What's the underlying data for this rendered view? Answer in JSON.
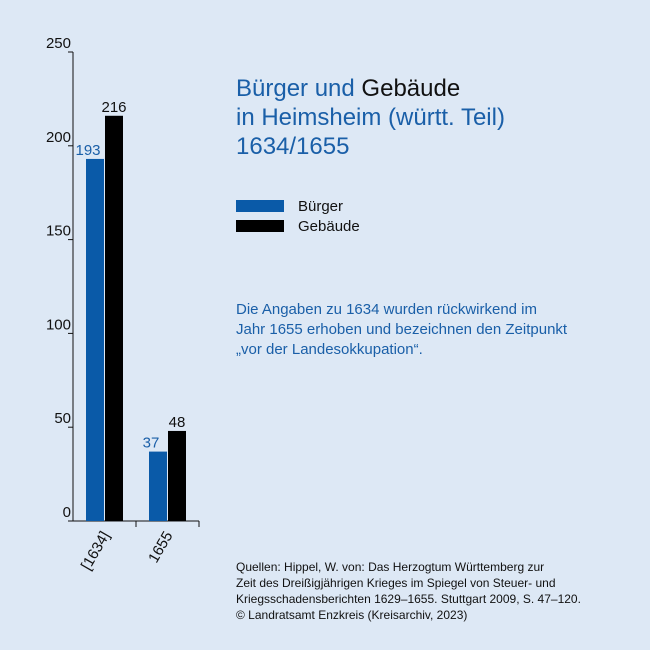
{
  "chart_data": {
    "type": "bar",
    "title_part1": "Bürger und",
    "title_part2": "Gebäude",
    "title_line2": "in Heimsheim (württ. Teil)",
    "title_line3": "1634/1655",
    "categories": [
      "[1634]",
      "1655"
    ],
    "series": [
      {
        "name": "Bürger",
        "values": [
          193,
          37
        ],
        "color": "#0a5aa8",
        "label_color": "#1a5fa8"
      },
      {
        "name": "Gebäude",
        "values": [
          216,
          48
        ],
        "color": "#000000",
        "label_color": "#111111"
      }
    ],
    "ylim": [
      0,
      250
    ],
    "yticks": [
      0,
      50,
      100,
      150,
      200,
      250
    ],
    "grid": false,
    "legend": "right"
  },
  "note": {
    "line1": "Die Angaben zu 1634 wurden rückwirkend im",
    "line2": "Jahr 1655 erhoben und bezeichnen den Zeitpunkt",
    "line3": "„vor der Landesokkupation“."
  },
  "source": {
    "line1": "Quellen: Hippel, W. von: Das Herzogtum Württemberg zur",
    "line2": "Zeit des Dreißigjährigen Krieges im Spiegel von Steuer- und",
    "line3": "Kriegsschadensberichten 1629–1655. Stuttgart 2009, S. 47–120.",
    "line4": "© Landratsamt Enzkreis (Kreisarchiv, 2023)"
  }
}
